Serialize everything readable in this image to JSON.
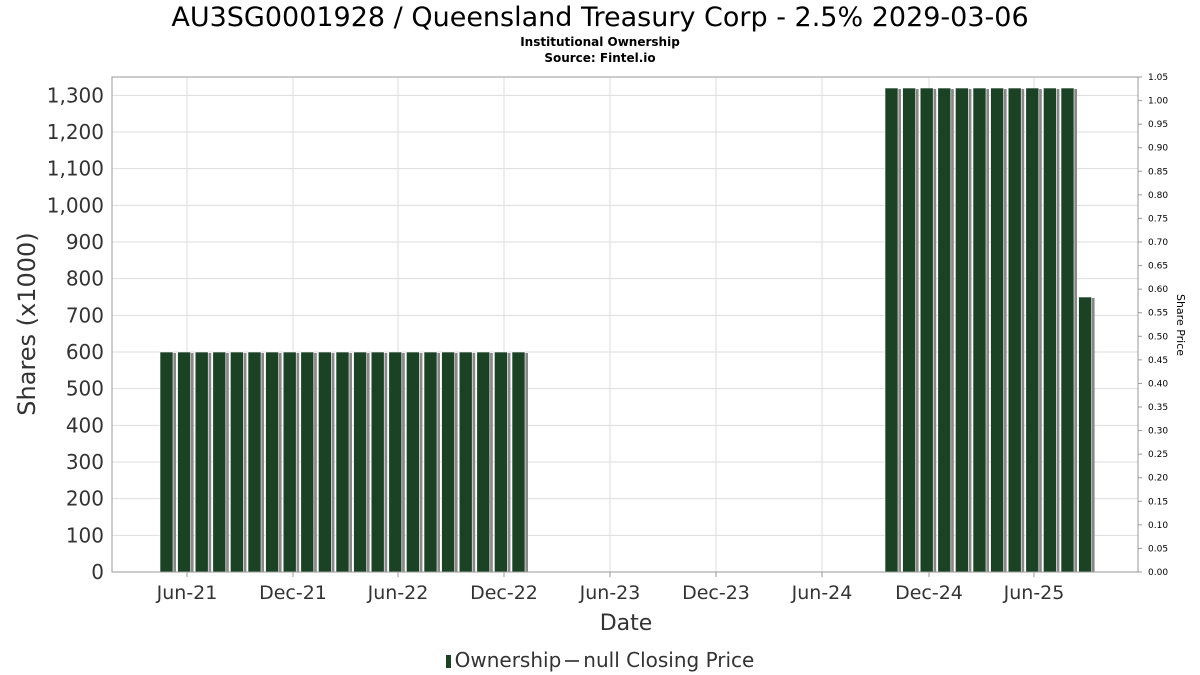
{
  "chart_data": {
    "type": "bar",
    "title": "AU3SG0001928 / Queensland Treasury Corp - 2.5% 2029-03-06",
    "subtitle": "Institutional Ownership",
    "source": "Source: Fintel.io",
    "xlabel": "Date",
    "ylabel": "Shares (x1000)",
    "y2label": "Share Price",
    "ylim": [
      0,
      1350
    ],
    "y2lim": [
      0,
      1.05
    ],
    "yticks": [
      "0",
      "100",
      "200",
      "300",
      "400",
      "500",
      "600",
      "700",
      "800",
      "900",
      "1,000",
      "1,100",
      "1,200",
      "1,300"
    ],
    "y2ticks": [
      "0.00",
      "0.05",
      "0.10",
      "0.15",
      "0.20",
      "0.25",
      "0.30",
      "0.35",
      "0.40",
      "0.45",
      "0.50",
      "0.55",
      "0.60",
      "0.65",
      "0.70",
      "0.75",
      "0.80",
      "0.85",
      "0.90",
      "0.95",
      "1.00",
      "1.05"
    ],
    "xticks": [
      "Jun-21",
      "Dec-21",
      "Jun-22",
      "Dec-22",
      "Jun-23",
      "Dec-23",
      "Jun-24",
      "Dec-24",
      "Jun-25"
    ],
    "grid": true,
    "colors": {
      "bar": "#1b4224",
      "shadow": "#888888",
      "grid": "#dddddd"
    },
    "series": [
      {
        "name": "Ownership",
        "x": [
          "2021-05",
          "2021-06",
          "2021-07",
          "2021-08",
          "2021-09",
          "2021-10",
          "2021-11",
          "2021-12",
          "2022-01",
          "2022-02",
          "2022-03",
          "2022-04",
          "2022-05",
          "2022-06",
          "2022-07",
          "2022-08",
          "2022-09",
          "2022-10",
          "2022-11",
          "2022-12",
          "2022-12b",
          "2024-11",
          "2024-12",
          "2025-01",
          "2025-02",
          "2025-03",
          "2025-04",
          "2025-05",
          "2025-06",
          "2025-07",
          "2025-08",
          "2025-09",
          "2025-10"
        ],
        "values": [
          600,
          600,
          600,
          600,
          600,
          600,
          600,
          600,
          600,
          600,
          600,
          600,
          600,
          600,
          600,
          600,
          600,
          600,
          600,
          600,
          600,
          1320,
          1320,
          1320,
          1320,
          1320,
          1320,
          1320,
          1320,
          1320,
          1320,
          1320,
          750
        ]
      }
    ],
    "legend": {
      "position": "bottom",
      "items": [
        "Ownership",
        "null Closing Price"
      ]
    }
  }
}
